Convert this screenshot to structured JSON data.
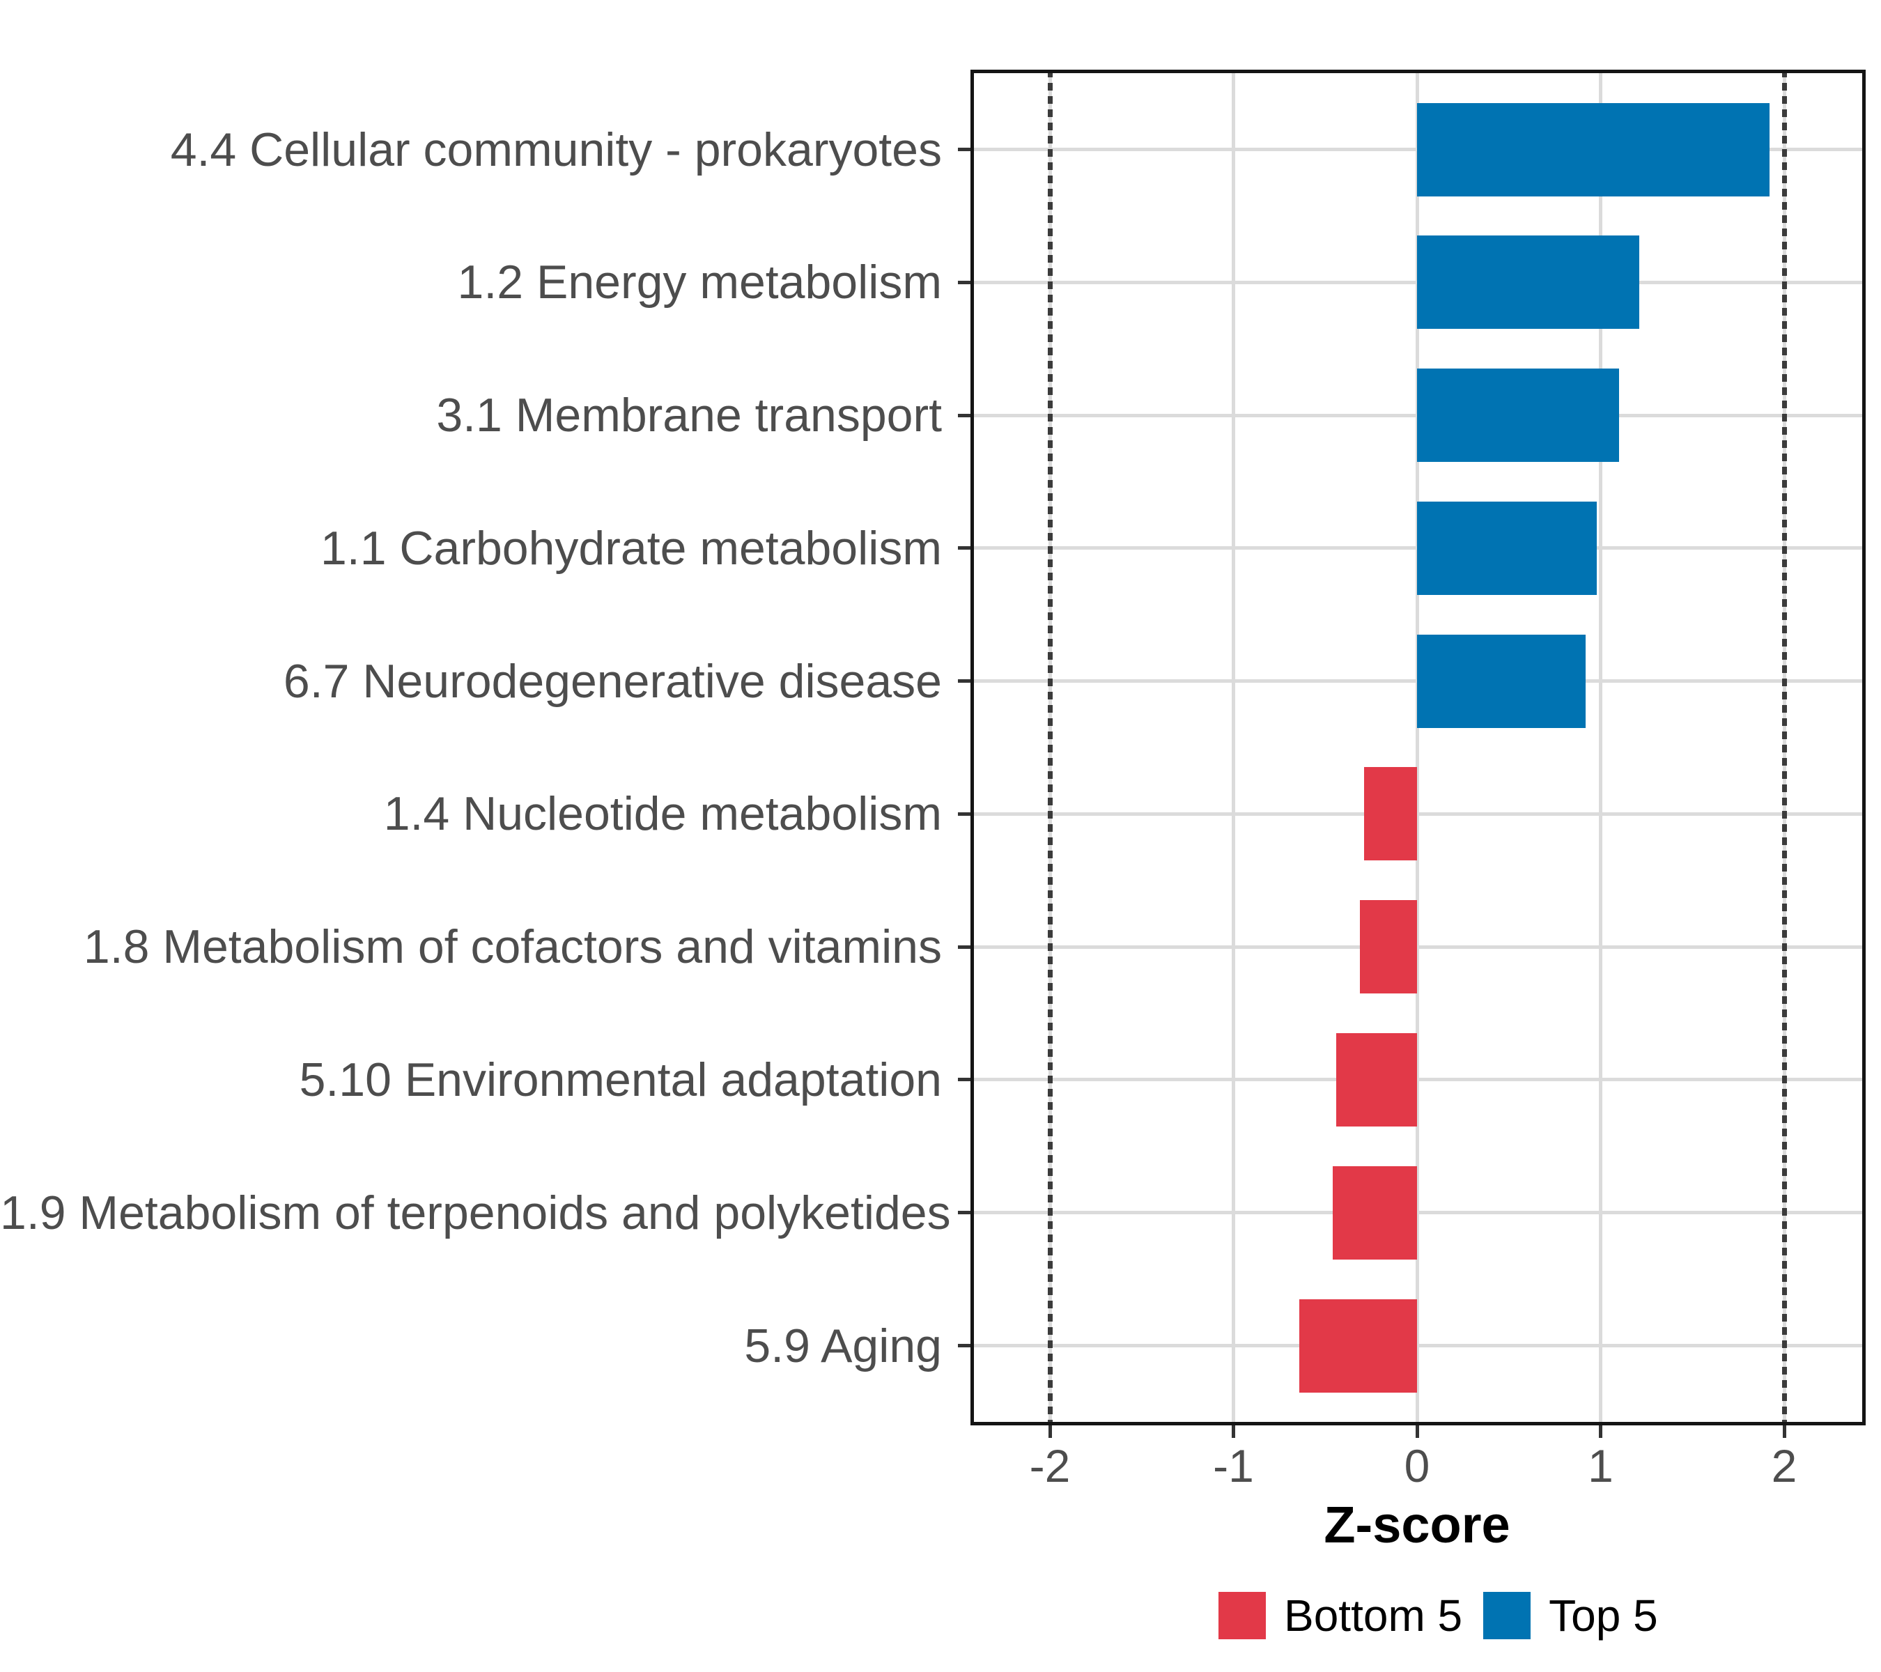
{
  "chart_data": {
    "type": "bar",
    "orientation": "horizontal",
    "title": "",
    "xlabel": "Z-score",
    "ylabel": "",
    "categories": [
      "4.4 Cellular community - prokaryotes",
      "1.2 Energy metabolism",
      "3.1 Membrane transport",
      "1.1 Carbohydrate metabolism",
      "6.7 Neurodegenerative disease",
      "1.4 Nucleotide metabolism",
      "1.8 Metabolism of cofactors and vitamins",
      "5.10 Environmental adaptation",
      "1.9 Metabolism of terpenoids and polyketides",
      "5.9 Aging"
    ],
    "values": [
      1.92,
      1.21,
      1.1,
      0.98,
      0.92,
      -0.29,
      -0.31,
      -0.44,
      -0.46,
      -0.64
    ],
    "groups": [
      "Top 5",
      "Top 5",
      "Top 5",
      "Top 5",
      "Top 5",
      "Bottom 5",
      "Bottom 5",
      "Bottom 5",
      "Bottom 5",
      "Bottom 5"
    ],
    "x_ticks": [
      "-2",
      "-1",
      "0",
      "1",
      "2"
    ],
    "x_tick_values": [
      -2,
      -1,
      0,
      1,
      2
    ],
    "xlim": [
      -2.43,
      2.43
    ],
    "reference_lines": [
      -2,
      2
    ],
    "grid": "major x gridlines at integers; y gridline at each category center",
    "legend_position": "bottom",
    "legend": [
      {
        "label": "Bottom 5",
        "color": "#E23948"
      },
      {
        "label": "Top 5",
        "color": "#0073B2"
      }
    ]
  },
  "colors": {
    "top5_blue": "#0073B2",
    "bottom5_red": "#E23948",
    "gridline": "#DBDBDB",
    "reference_line": "#3B3B3B",
    "panel_border": "#141414",
    "axis_text": "#4D4D4D",
    "tick_mark": "#333333",
    "title_text": "#000000",
    "background": "#FFFFFF"
  }
}
